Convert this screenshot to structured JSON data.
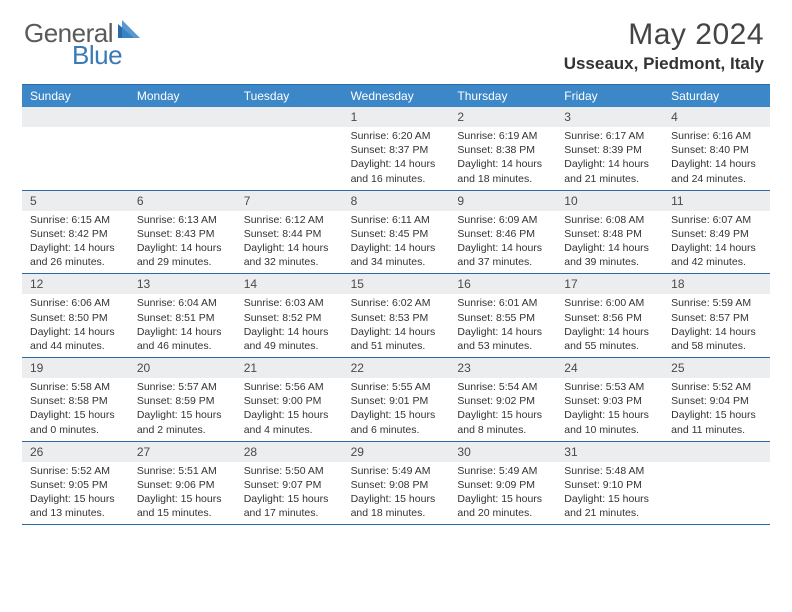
{
  "brand": {
    "general": "General",
    "blue": "Blue"
  },
  "title": "May 2024",
  "location": "Usseaux, Piedmont, Italy",
  "colors": {
    "header_bg": "#3c87c7",
    "border": "#2a6aa8",
    "daynum_bg": "#ecedee",
    "text": "#333333",
    "logo_gray": "#5a5a5a",
    "logo_blue": "#3a7ab8"
  },
  "dayHeaders": [
    "Sunday",
    "Monday",
    "Tuesday",
    "Wednesday",
    "Thursday",
    "Friday",
    "Saturday"
  ],
  "weeks": [
    [
      {
        "n": "",
        "sunrise": "",
        "sunset": "",
        "daylight": ""
      },
      {
        "n": "",
        "sunrise": "",
        "sunset": "",
        "daylight": ""
      },
      {
        "n": "",
        "sunrise": "",
        "sunset": "",
        "daylight": ""
      },
      {
        "n": "1",
        "sunrise": "Sunrise: 6:20 AM",
        "sunset": "Sunset: 8:37 PM",
        "daylight": "Daylight: 14 hours and 16 minutes."
      },
      {
        "n": "2",
        "sunrise": "Sunrise: 6:19 AM",
        "sunset": "Sunset: 8:38 PM",
        "daylight": "Daylight: 14 hours and 18 minutes."
      },
      {
        "n": "3",
        "sunrise": "Sunrise: 6:17 AM",
        "sunset": "Sunset: 8:39 PM",
        "daylight": "Daylight: 14 hours and 21 minutes."
      },
      {
        "n": "4",
        "sunrise": "Sunrise: 6:16 AM",
        "sunset": "Sunset: 8:40 PM",
        "daylight": "Daylight: 14 hours and 24 minutes."
      }
    ],
    [
      {
        "n": "5",
        "sunrise": "Sunrise: 6:15 AM",
        "sunset": "Sunset: 8:42 PM",
        "daylight": "Daylight: 14 hours and 26 minutes."
      },
      {
        "n": "6",
        "sunrise": "Sunrise: 6:13 AM",
        "sunset": "Sunset: 8:43 PM",
        "daylight": "Daylight: 14 hours and 29 minutes."
      },
      {
        "n": "7",
        "sunrise": "Sunrise: 6:12 AM",
        "sunset": "Sunset: 8:44 PM",
        "daylight": "Daylight: 14 hours and 32 minutes."
      },
      {
        "n": "8",
        "sunrise": "Sunrise: 6:11 AM",
        "sunset": "Sunset: 8:45 PM",
        "daylight": "Daylight: 14 hours and 34 minutes."
      },
      {
        "n": "9",
        "sunrise": "Sunrise: 6:09 AM",
        "sunset": "Sunset: 8:46 PM",
        "daylight": "Daylight: 14 hours and 37 minutes."
      },
      {
        "n": "10",
        "sunrise": "Sunrise: 6:08 AM",
        "sunset": "Sunset: 8:48 PM",
        "daylight": "Daylight: 14 hours and 39 minutes."
      },
      {
        "n": "11",
        "sunrise": "Sunrise: 6:07 AM",
        "sunset": "Sunset: 8:49 PM",
        "daylight": "Daylight: 14 hours and 42 minutes."
      }
    ],
    [
      {
        "n": "12",
        "sunrise": "Sunrise: 6:06 AM",
        "sunset": "Sunset: 8:50 PM",
        "daylight": "Daylight: 14 hours and 44 minutes."
      },
      {
        "n": "13",
        "sunrise": "Sunrise: 6:04 AM",
        "sunset": "Sunset: 8:51 PM",
        "daylight": "Daylight: 14 hours and 46 minutes."
      },
      {
        "n": "14",
        "sunrise": "Sunrise: 6:03 AM",
        "sunset": "Sunset: 8:52 PM",
        "daylight": "Daylight: 14 hours and 49 minutes."
      },
      {
        "n": "15",
        "sunrise": "Sunrise: 6:02 AM",
        "sunset": "Sunset: 8:53 PM",
        "daylight": "Daylight: 14 hours and 51 minutes."
      },
      {
        "n": "16",
        "sunrise": "Sunrise: 6:01 AM",
        "sunset": "Sunset: 8:55 PM",
        "daylight": "Daylight: 14 hours and 53 minutes."
      },
      {
        "n": "17",
        "sunrise": "Sunrise: 6:00 AM",
        "sunset": "Sunset: 8:56 PM",
        "daylight": "Daylight: 14 hours and 55 minutes."
      },
      {
        "n": "18",
        "sunrise": "Sunrise: 5:59 AM",
        "sunset": "Sunset: 8:57 PM",
        "daylight": "Daylight: 14 hours and 58 minutes."
      }
    ],
    [
      {
        "n": "19",
        "sunrise": "Sunrise: 5:58 AM",
        "sunset": "Sunset: 8:58 PM",
        "daylight": "Daylight: 15 hours and 0 minutes."
      },
      {
        "n": "20",
        "sunrise": "Sunrise: 5:57 AM",
        "sunset": "Sunset: 8:59 PM",
        "daylight": "Daylight: 15 hours and 2 minutes."
      },
      {
        "n": "21",
        "sunrise": "Sunrise: 5:56 AM",
        "sunset": "Sunset: 9:00 PM",
        "daylight": "Daylight: 15 hours and 4 minutes."
      },
      {
        "n": "22",
        "sunrise": "Sunrise: 5:55 AM",
        "sunset": "Sunset: 9:01 PM",
        "daylight": "Daylight: 15 hours and 6 minutes."
      },
      {
        "n": "23",
        "sunrise": "Sunrise: 5:54 AM",
        "sunset": "Sunset: 9:02 PM",
        "daylight": "Daylight: 15 hours and 8 minutes."
      },
      {
        "n": "24",
        "sunrise": "Sunrise: 5:53 AM",
        "sunset": "Sunset: 9:03 PM",
        "daylight": "Daylight: 15 hours and 10 minutes."
      },
      {
        "n": "25",
        "sunrise": "Sunrise: 5:52 AM",
        "sunset": "Sunset: 9:04 PM",
        "daylight": "Daylight: 15 hours and 11 minutes."
      }
    ],
    [
      {
        "n": "26",
        "sunrise": "Sunrise: 5:52 AM",
        "sunset": "Sunset: 9:05 PM",
        "daylight": "Daylight: 15 hours and 13 minutes."
      },
      {
        "n": "27",
        "sunrise": "Sunrise: 5:51 AM",
        "sunset": "Sunset: 9:06 PM",
        "daylight": "Daylight: 15 hours and 15 minutes."
      },
      {
        "n": "28",
        "sunrise": "Sunrise: 5:50 AM",
        "sunset": "Sunset: 9:07 PM",
        "daylight": "Daylight: 15 hours and 17 minutes."
      },
      {
        "n": "29",
        "sunrise": "Sunrise: 5:49 AM",
        "sunset": "Sunset: 9:08 PM",
        "daylight": "Daylight: 15 hours and 18 minutes."
      },
      {
        "n": "30",
        "sunrise": "Sunrise: 5:49 AM",
        "sunset": "Sunset: 9:09 PM",
        "daylight": "Daylight: 15 hours and 20 minutes."
      },
      {
        "n": "31",
        "sunrise": "Sunrise: 5:48 AM",
        "sunset": "Sunset: 9:10 PM",
        "daylight": "Daylight: 15 hours and 21 minutes."
      },
      {
        "n": "",
        "sunrise": "",
        "sunset": "",
        "daylight": ""
      }
    ]
  ]
}
